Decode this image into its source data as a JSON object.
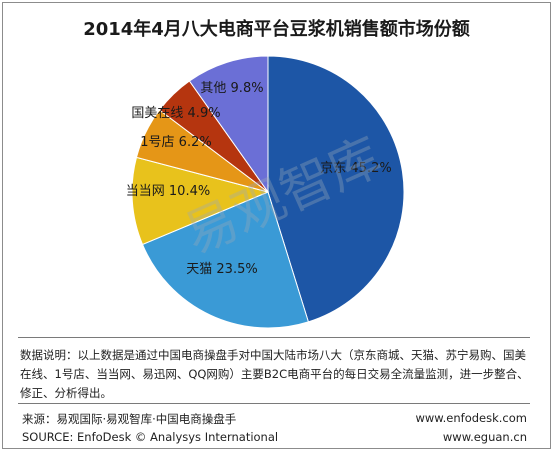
{
  "chart_data": {
    "type": "pie",
    "title": "2014年4月八大电商平台豆浆机销售额市场份额",
    "slices": [
      {
        "label": "京东",
        "value": 45.2,
        "display": "京东 45.2%",
        "color": "#1d56a6"
      },
      {
        "label": "天猫",
        "value": 23.5,
        "display": "天猫 23.5%",
        "color": "#3a9ad6"
      },
      {
        "label": "当当网",
        "value": 10.4,
        "display": "当当网 10.4%",
        "color": "#e8c21c"
      },
      {
        "label": "1号店",
        "value": 6.2,
        "display": "1号店 6.2%",
        "color": "#e59617"
      },
      {
        "label": "国美在线",
        "value": 4.9,
        "display": "国美在线 4.9%",
        "color": "#b5350f"
      },
      {
        "label": "其他",
        "value": 9.8,
        "display": "其他 9.8%",
        "color": "#6b6fd6"
      }
    ]
  },
  "watermark_text": "易观智库",
  "note": "数据说明：以上数据是通过中国电商操盘手对中国大陆市场八大（京东商城、天猫、苏宁易购、国美在线、1号店、当当网、易迅网、QQ网购）主要B2C电商平台的每日交易全流量监测，进一步整合、修正、分析得出。",
  "footer": {
    "source_cn": "来源：易观国际·易观智库·中国电商操盘手",
    "source_en": "SOURCE: EnfoDesk © Analysys International",
    "url1": "www.enfodesk.com",
    "url2": "www.eguan.cn"
  }
}
